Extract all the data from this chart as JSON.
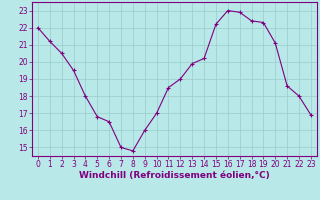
{
  "x": [
    0,
    1,
    2,
    3,
    4,
    5,
    6,
    7,
    8,
    9,
    10,
    11,
    12,
    13,
    14,
    15,
    16,
    17,
    18,
    19,
    20,
    21,
    22,
    23
  ],
  "y": [
    22,
    21.2,
    20.5,
    19.5,
    18,
    16.8,
    16.5,
    15,
    14.8,
    16,
    17,
    18.5,
    19,
    19.9,
    20.2,
    22.2,
    23.0,
    22.9,
    22.4,
    22.3,
    21.1,
    18.6,
    18.0,
    16.9
  ],
  "line_color": "#800080",
  "marker": "+",
  "marker_size": 3,
  "marker_linewidth": 0.8,
  "line_width": 0.8,
  "bg_color": "#b8e8e8",
  "grid_color": "#99cccc",
  "xlabel": "Windchill (Refroidissement éolien,°C)",
  "ylim": [
    14.5,
    23.5
  ],
  "xlim": [
    -0.5,
    23.5
  ],
  "yticks": [
    15,
    16,
    17,
    18,
    19,
    20,
    21,
    22,
    23
  ],
  "xticks": [
    0,
    1,
    2,
    3,
    4,
    5,
    6,
    7,
    8,
    9,
    10,
    11,
    12,
    13,
    14,
    15,
    16,
    17,
    18,
    19,
    20,
    21,
    22,
    23
  ],
  "tick_label_fontsize": 5.5,
  "xlabel_fontsize": 6.5,
  "tick_color": "#800080",
  "label_color": "#800080",
  "spine_color": "#800080"
}
